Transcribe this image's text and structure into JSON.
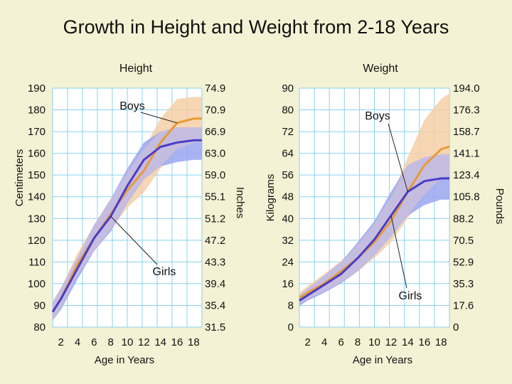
{
  "title": "Growth in Height and Weight from 2-18 Years",
  "colors": {
    "background": "#f4f2d4",
    "plot_background": "#ffffff",
    "grid": "#8ad0f0",
    "boys_line": "#e89a35",
    "boys_band": "#f6cfa6",
    "girls_line": "#4a3cc8",
    "girls_band": "#9aa6f0",
    "overlap_band": "#c5bde0"
  },
  "chart_data": [
    {
      "type": "line",
      "panel_label": "Height",
      "xlabel": "Age in Years",
      "ylabel_left": "Centimeters",
      "ylabel_right": "Inches",
      "xlim": [
        1,
        19
      ],
      "ylim": [
        80,
        190
      ],
      "xticks": [
        2,
        4,
        6,
        8,
        10,
        12,
        14,
        16,
        18
      ],
      "yticks_left": [
        80,
        90,
        100,
        110,
        120,
        130,
        140,
        150,
        160,
        170,
        180,
        190
      ],
      "yticks_right": [
        "31.5",
        "35.4",
        "39.4",
        "43.3",
        "47.2",
        "51.2",
        "55.1",
        "59.0",
        "63.0",
        "66.9",
        "70.9",
        "74.9"
      ],
      "grid": true,
      "x": [
        1,
        2,
        4,
        6,
        8,
        10,
        12,
        14,
        16,
        18,
        19
      ],
      "series": [
        {
          "name": "Boys",
          "values": [
            87,
            93,
            109,
            121,
            132,
            143,
            152,
            165,
            174,
            176,
            176
          ],
          "band_low": [
            83,
            89,
            104,
            115,
            125,
            135,
            142,
            153,
            162,
            165,
            165
          ],
          "band_high": [
            92,
            98,
            114,
            127,
            139,
            151,
            162,
            176,
            185,
            186,
            186
          ]
        },
        {
          "name": "Girls",
          "values": [
            87,
            93,
            107,
            121,
            131,
            145,
            157,
            163,
            165,
            166,
            166
          ],
          "band_low": [
            83,
            88,
            102,
            115,
            124,
            137,
            148,
            154,
            156,
            157,
            157
          ],
          "band_high": [
            91,
            98,
            112,
            127,
            139,
            153,
            165,
            170,
            172,
            172,
            172
          ]
        }
      ]
    },
    {
      "type": "line",
      "panel_label": "Weight",
      "xlabel": "Age in Years",
      "ylabel_left": "Kilograms",
      "ylabel_right": "Pounds",
      "xlim": [
        1,
        19
      ],
      "ylim": [
        0,
        90
      ],
      "xticks": [
        2,
        4,
        6,
        8,
        10,
        12,
        14,
        16,
        18
      ],
      "yticks_left": [
        0,
        8,
        16,
        24,
        32,
        40,
        48,
        56,
        64,
        72,
        80,
        90
      ],
      "yticks_right": [
        "0",
        "17.6",
        "35.3",
        "52.9",
        "70.5",
        "88.2",
        "105.8",
        "123.4",
        "141.1",
        "158.7",
        "176.3",
        "194.0"
      ],
      "grid": true,
      "x": [
        1,
        2,
        4,
        6,
        8,
        10,
        12,
        14,
        16,
        18,
        19
      ],
      "series": [
        {
          "name": "Boys",
          "values": [
            11,
            13,
            16.5,
            21,
            26,
            32,
            40,
            51,
            61,
            67,
            68
          ],
          "band_low": [
            9,
            10.5,
            13.5,
            17,
            21,
            26,
            32,
            41,
            50,
            56,
            57
          ],
          "band_high": [
            13,
            15.5,
            20,
            25,
            31,
            39,
            49,
            64,
            78,
            86,
            88
          ]
        },
        {
          "name": "Girls",
          "values": [
            10,
            12,
            16,
            20,
            26,
            33,
            42,
            51,
            55,
            56,
            56
          ],
          "band_low": [
            8,
            10,
            13,
            16.5,
            21,
            27,
            34,
            42,
            46,
            48,
            48
          ],
          "band_high": [
            12,
            14.5,
            19.5,
            24.5,
            32,
            40,
            51,
            61,
            64,
            65,
            65
          ]
        }
      ]
    }
  ]
}
